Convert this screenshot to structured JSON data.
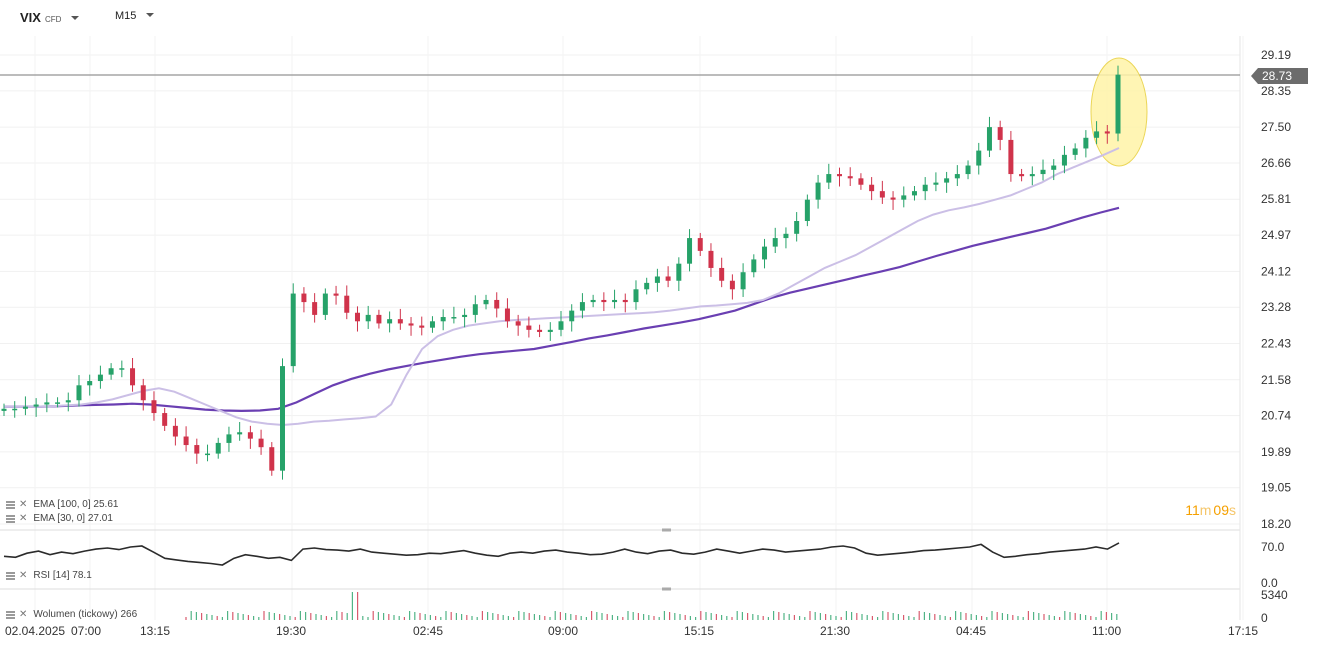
{
  "toolbar": {
    "symbol": "VIX",
    "instrument_type": "CFD",
    "interval": "M15"
  },
  "price_axis": {
    "ticks": [
      "29.19",
      "28.35",
      "27.50",
      "26.66",
      "25.81",
      "24.97",
      "24.12",
      "23.28",
      "22.43",
      "21.58",
      "20.74",
      "19.89",
      "19.05",
      "18.20"
    ],
    "last_price": "28.73"
  },
  "rsi_axis": {
    "ticks": [
      "70.0",
      "0.0"
    ]
  },
  "volume_axis": {
    "ticks": [
      "5340",
      "0"
    ]
  },
  "time_axis": {
    "labels": [
      "02.04.2025",
      "07:00",
      "13:15",
      "19:30",
      "02:45",
      "09:00",
      "15:15",
      "21:30",
      "04:45",
      "11:00",
      "17:15"
    ]
  },
  "legends": {
    "ema100": "EMA [100, 0] 25.61",
    "ema30": "EMA [30, 0] 27.01",
    "rsi": "RSI [14] 78.1",
    "volume": "Wolumen (tickowy) 266"
  },
  "timer": {
    "minutes": "11",
    "minutes_unit": "m",
    "seconds": "09",
    "seconds_unit": "s"
  },
  "colors": {
    "up": "#26a269",
    "down": "#d0334b",
    "ema100": "#6a3fb2",
    "ema30": "#cbbfe6",
    "rsi": "#2b2b2b",
    "highlight": "#fff4a8"
  },
  "chart_data": {
    "type": "candlestick",
    "title": "",
    "ylim": [
      18.2,
      29.19
    ],
    "x_labels": [
      "02.04.2025",
      "07:00",
      "13:15",
      "19:30",
      "02:45",
      "09:00",
      "15:15",
      "21:30",
      "04:45",
      "11:00",
      "17:15"
    ],
    "close_path": [
      20.9,
      20.9,
      20.95,
      21.0,
      21.05,
      21.05,
      21.1,
      21.45,
      21.55,
      21.7,
      21.85,
      21.85,
      21.45,
      21.1,
      20.8,
      20.5,
      20.25,
      20.05,
      19.85,
      19.85,
      20.1,
      20.3,
      20.35,
      20.2,
      20.0,
      19.45,
      21.9,
      23.6,
      23.4,
      23.1,
      23.6,
      23.55,
      23.15,
      22.95,
      23.1,
      22.9,
      23.0,
      22.9,
      22.85,
      22.8,
      22.95,
      23.05,
      23.05,
      23.1,
      23.35,
      23.45,
      23.25,
      22.95,
      22.85,
      22.75,
      22.7,
      22.75,
      22.95,
      23.2,
      23.4,
      23.45,
      23.4,
      23.45,
      23.4,
      23.7,
      23.85,
      24.0,
      23.9,
      24.3,
      24.9,
      24.6,
      24.2,
      23.9,
      23.7,
      24.1,
      24.4,
      24.7,
      24.9,
      25.0,
      25.3,
      25.8,
      26.2,
      26.4,
      26.35,
      26.3,
      26.15,
      26.0,
      25.85,
      25.8,
      25.9,
      26.0,
      26.15,
      26.2,
      26.3,
      26.4,
      26.6,
      26.95,
      27.5,
      27.2,
      26.4,
      26.35,
      26.4,
      26.5,
      26.6,
      26.85,
      27.0,
      27.25,
      27.4,
      27.35,
      28.73
    ],
    "ema30_path": [
      20.95,
      20.95,
      20.95,
      20.96,
      20.98,
      21.0,
      21.05,
      21.12,
      21.22,
      21.32,
      21.38,
      21.3,
      21.15,
      21.0,
      20.85,
      20.7,
      20.6,
      20.55,
      20.52,
      20.55,
      20.6,
      20.62,
      20.65,
      20.68,
      20.72,
      21.0,
      21.7,
      22.3,
      22.6,
      22.75,
      22.85,
      22.9,
      22.95,
      22.98,
      23.0,
      23.02,
      23.04,
      23.06,
      23.08,
      23.1,
      23.12,
      23.14,
      23.16,
      23.2,
      23.25,
      23.3,
      23.32,
      23.35,
      23.38,
      23.45,
      23.6,
      23.8,
      24.0,
      24.2,
      24.35,
      24.5,
      24.7,
      24.9,
      25.1,
      25.3,
      25.45,
      25.55,
      25.62,
      25.7,
      25.8,
      25.9,
      26.05,
      26.2,
      26.4,
      26.55,
      26.7,
      26.85,
      27.01
    ],
    "ema100_path": [
      20.95,
      20.95,
      20.95,
      20.96,
      20.98,
      20.99,
      21.0,
      21.02,
      21.0,
      20.96,
      20.92,
      20.88,
      20.86,
      20.85,
      20.86,
      20.9,
      21.05,
      21.25,
      21.45,
      21.6,
      21.72,
      21.82,
      21.9,
      21.98,
      22.05,
      22.12,
      22.18,
      22.22,
      22.26,
      22.3,
      22.38,
      22.46,
      22.55,
      22.62,
      22.7,
      22.78,
      22.85,
      22.92,
      23.0,
      23.1,
      23.2,
      23.35,
      23.5,
      23.62,
      23.72,
      23.82,
      23.92,
      24.02,
      24.12,
      24.22,
      24.35,
      24.48,
      24.6,
      24.72,
      24.82,
      24.92,
      25.02,
      25.12,
      25.25,
      25.38,
      25.5,
      25.61
    ],
    "rsi_path": [
      52,
      50,
      58,
      62,
      55,
      60,
      57,
      62,
      66,
      68,
      65,
      70,
      72,
      60,
      48,
      45,
      42,
      40,
      38,
      35,
      48,
      55,
      52,
      48,
      50,
      44,
      66,
      68,
      65,
      64,
      62,
      66,
      60,
      58,
      56,
      54,
      55,
      58,
      57,
      60,
      63,
      58,
      54,
      52,
      58,
      60,
      58,
      62,
      64,
      60,
      58,
      55,
      56,
      60,
      66,
      60,
      57,
      62,
      64,
      58,
      56,
      60,
      66,
      62,
      58,
      62,
      66,
      64,
      60,
      62,
      64,
      66,
      70,
      72,
      68,
      58,
      54,
      56,
      58,
      60,
      63,
      64,
      66,
      68,
      70,
      75,
      60,
      50,
      52,
      55,
      57,
      60,
      62,
      64,
      66,
      70,
      66,
      78
    ]
  }
}
